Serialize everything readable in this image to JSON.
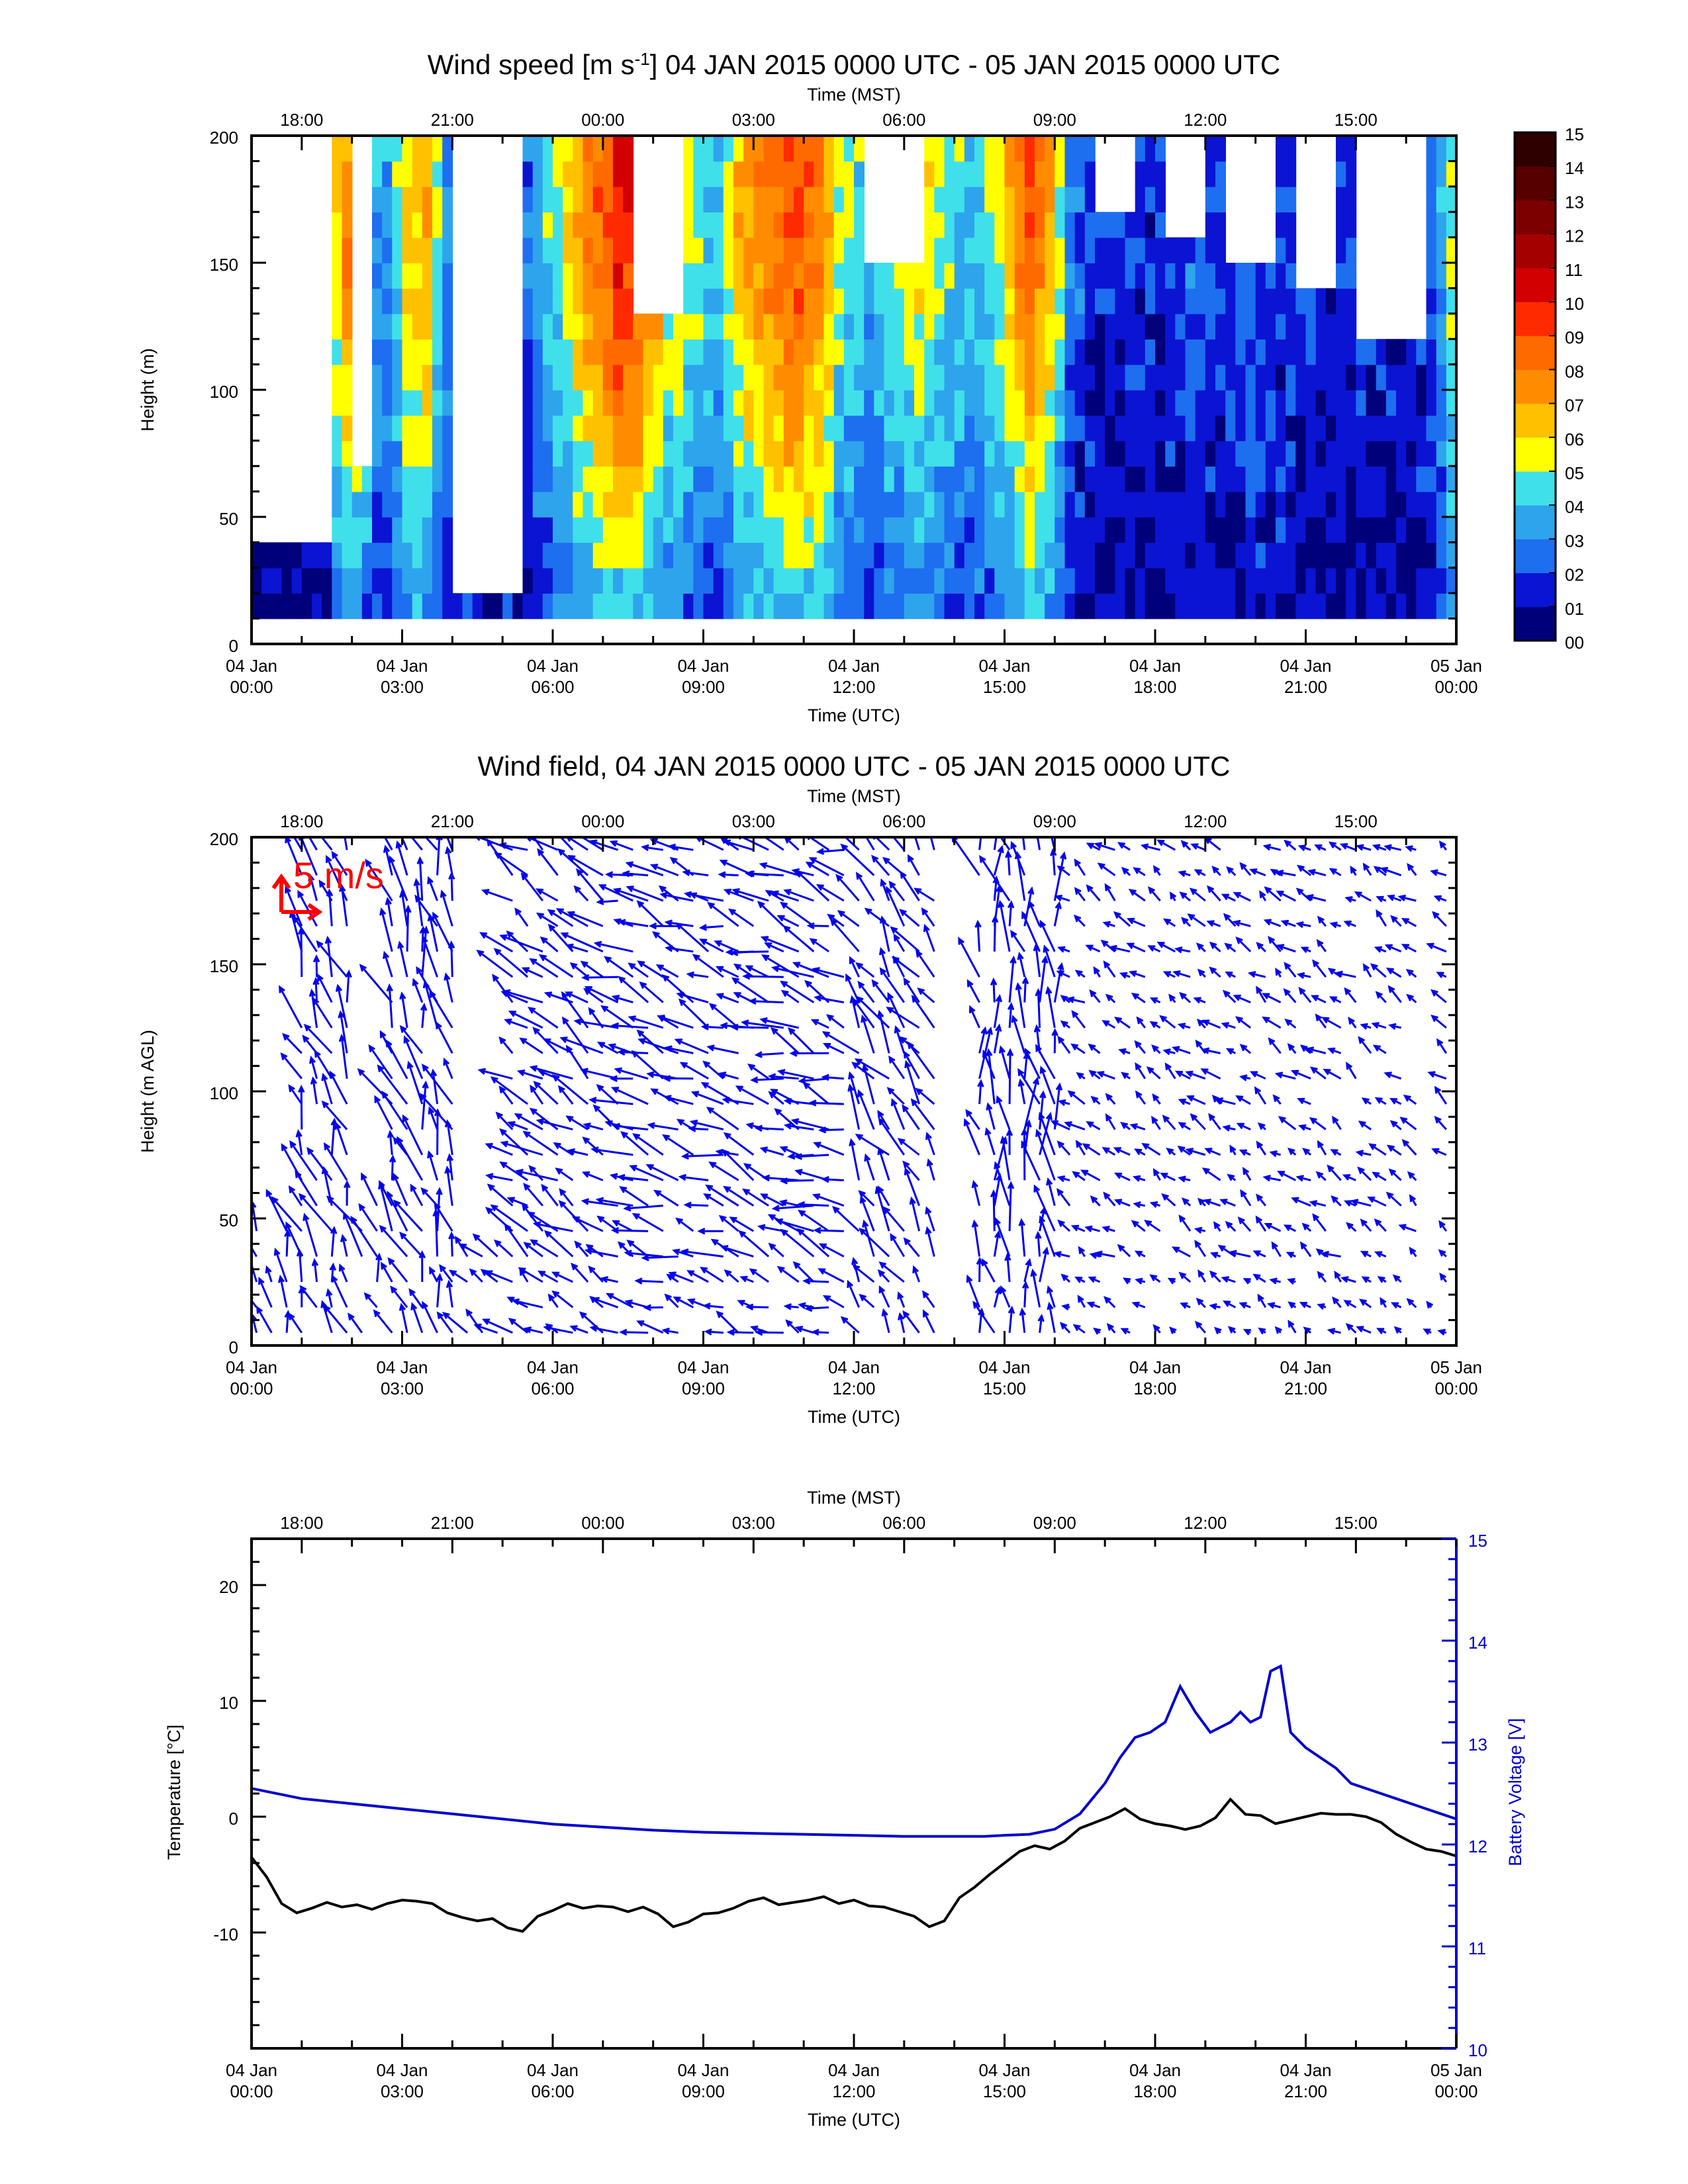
{
  "chart_data": [
    {
      "type": "heatmap",
      "title": "Wind speed [m s-1] 04 JAN 2015 0000 UTC - 05 JAN 2015 0000 UTC",
      "title_main": "Wind speed [m s",
      "title_sup": "-1",
      "title_rest": "] 04 JAN 2015 0000 UTC - 05 JAN 2015 0000 UTC",
      "xlabel": "Time (UTC)",
      "x2label": "Time (MST)",
      "ylabel": "Height (m)",
      "xlim_hours_utc": [
        0,
        24
      ],
      "ylim": [
        0,
        200
      ],
      "yticks": [
        0,
        50,
        100,
        150,
        200
      ],
      "colorbar": {
        "labels": [
          "00",
          "01",
          "02",
          "03",
          "04",
          "05",
          "06",
          "07",
          "08",
          "09",
          "10",
          "11",
          "12",
          "13",
          "14",
          "15"
        ],
        "colors": [
          "#00007a",
          "#0a14d2",
          "#1e6ef0",
          "#2ea4ec",
          "#3fe0ea",
          "#ffff00",
          "#ffc000",
          "#ff8c00",
          "#ff6a00",
          "#ff2a00",
          "#d20000",
          "#a50000",
          "#7d0000",
          "#560000",
          "#2e0000"
        ]
      }
    },
    {
      "type": "scatter",
      "title": "Wind field, 04 JAN 2015 0000 UTC - 05 JAN 2015 0000 UTC",
      "xlabel": "Time (UTC)",
      "x2label": "Time (MST)",
      "ylabel": "Height (m AGL)",
      "xlim_hours_utc": [
        0,
        24
      ],
      "ylim": [
        0,
        200
      ],
      "yticks": [
        0,
        50,
        100,
        150,
        200
      ],
      "reference_vector_label": "5 m/s",
      "reference_color": "#ff0000",
      "vector_color": "#0000ee"
    },
    {
      "type": "line",
      "xlabel": "Time (UTC)",
      "x2label": "Time (MST)",
      "ylabel": "Temperature [°C]",
      "y2label": "Battery Voltage [V]",
      "xlim_hours_utc": [
        0,
        24
      ],
      "ylim": [
        -20,
        24
      ],
      "yticks": [
        -10,
        0,
        10,
        20
      ],
      "y2lim": [
        10,
        15
      ],
      "y2ticks": [
        10,
        11,
        12,
        13,
        14,
        15
      ],
      "temperature_color": "#000000",
      "voltage_color": "#0000cc",
      "temperature": {
        "x": [
          0,
          0.3,
          0.6,
          0.9,
          1.2,
          1.5,
          1.8,
          2.1,
          2.4,
          2.7,
          3.0,
          3.3,
          3.6,
          3.9,
          4.2,
          4.5,
          4.8,
          5.1,
          5.4,
          5.7,
          6.0,
          6.3,
          6.6,
          6.9,
          7.2,
          7.5,
          7.8,
          8.1,
          8.4,
          8.7,
          9.0,
          9.3,
          9.6,
          9.9,
          10.2,
          10.5,
          10.8,
          11.1,
          11.4,
          11.7,
          12.0,
          12.3,
          12.6,
          12.9,
          13.2,
          13.5,
          13.8,
          14.1,
          14.4,
          14.7,
          15.0,
          15.3,
          15.6,
          15.9,
          16.2,
          16.5,
          16.8,
          17.1,
          17.4,
          17.7,
          18.0,
          18.3,
          18.6,
          18.9,
          19.2,
          19.5,
          19.8,
          20.1,
          20.4,
          20.7,
          21.0,
          21.3,
          21.6,
          21.9,
          22.2,
          22.5,
          22.8,
          23.1,
          23.4,
          23.7,
          24.0
        ],
        "y": [
          -3.5,
          -5.2,
          -7.5,
          -8.3,
          -7.9,
          -7.4,
          -7.8,
          -7.6,
          -8.0,
          -7.5,
          -7.2,
          -7.3,
          -7.5,
          -8.3,
          -8.7,
          -9.0,
          -8.8,
          -9.6,
          -9.9,
          -8.6,
          -8.1,
          -7.5,
          -7.9,
          -7.7,
          -7.8,
          -8.2,
          -7.8,
          -8.4,
          -9.5,
          -9.1,
          -8.4,
          -8.3,
          -7.9,
          -7.3,
          -7.0,
          -7.6,
          -7.4,
          -7.2,
          -6.9,
          -7.5,
          -7.2,
          -7.7,
          -7.8,
          -8.2,
          -8.6,
          -9.5,
          -9.0,
          -7.0,
          -6.1,
          -5.0,
          -4.0,
          -3.0,
          -2.5,
          -2.8,
          -2.1,
          -1.0,
          -0.5,
          0.0,
          0.7,
          -0.2,
          -0.6,
          -0.8,
          -1.1,
          -0.8,
          -0.1,
          1.5,
          0.2,
          0.1,
          -0.6,
          -0.3,
          0.0,
          0.3,
          0.2,
          0.2,
          0.0,
          -0.5,
          -1.5,
          -2.2,
          -2.8,
          -3.0,
          -3.4
        ]
      },
      "voltage": {
        "x": [
          0,
          1,
          2,
          3,
          4,
          5,
          6,
          7,
          8,
          9,
          10,
          11,
          12,
          13,
          14,
          14.6,
          15.0,
          15.5,
          16.0,
          16.5,
          17.0,
          17.3,
          17.6,
          17.9,
          18.2,
          18.5,
          18.8,
          19.1,
          19.3,
          19.5,
          19.7,
          19.9,
          20.1,
          20.3,
          20.5,
          20.7,
          21.0,
          21.3,
          21.6,
          21.9,
          22.2,
          22.5,
          22.8,
          23.1,
          23.4,
          23.7,
          24.0
        ],
        "y": [
          12.55,
          12.45,
          12.4,
          12.35,
          12.3,
          12.25,
          12.2,
          12.17,
          12.14,
          12.12,
          12.11,
          12.1,
          12.09,
          12.08,
          12.08,
          12.08,
          12.09,
          12.1,
          12.15,
          12.3,
          12.6,
          12.85,
          13.05,
          13.1,
          13.2,
          13.55,
          13.3,
          13.1,
          13.15,
          13.2,
          13.3,
          13.2,
          13.25,
          13.7,
          13.75,
          13.1,
          12.95,
          12.85,
          12.75,
          12.6,
          12.55,
          12.5,
          12.45,
          12.4,
          12.35,
          12.3,
          12.25
        ]
      }
    }
  ],
  "axis_labels": {
    "utc_ticks": [
      {
        "h": 0,
        "line1": "04 Jan",
        "line2": "00:00"
      },
      {
        "h": 3,
        "line1": "04 Jan",
        "line2": "03:00"
      },
      {
        "h": 6,
        "line1": "04 Jan",
        "line2": "06:00"
      },
      {
        "h": 9,
        "line1": "04 Jan",
        "line2": "09:00"
      },
      {
        "h": 12,
        "line1": "04 Jan",
        "line2": "12:00"
      },
      {
        "h": 15,
        "line1": "04 Jan",
        "line2": "15:00"
      },
      {
        "h": 18,
        "line1": "04 Jan",
        "line2": "18:00"
      },
      {
        "h": 21,
        "line1": "04 Jan",
        "line2": "21:00"
      },
      {
        "h": 24,
        "line1": "05 Jan",
        "line2": "00:00"
      }
    ],
    "mst_ticks": [
      {
        "h": 1,
        "label": "18:00"
      },
      {
        "h": 4,
        "label": "21:00"
      },
      {
        "h": 7,
        "label": "00:00"
      },
      {
        "h": 10,
        "label": "03:00"
      },
      {
        "h": 13,
        "label": "06:00"
      },
      {
        "h": 16,
        "label": "09:00"
      },
      {
        "h": 19,
        "label": "12:00"
      },
      {
        "h": 22,
        "label": "15:00"
      }
    ]
  }
}
